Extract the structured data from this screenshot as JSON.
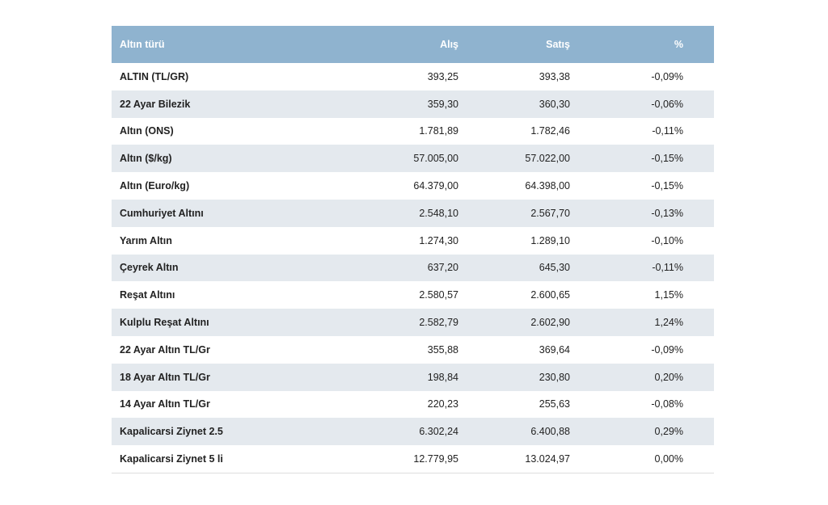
{
  "table": {
    "header": [
      "Altın türü",
      "Alış",
      "Satış",
      "%"
    ],
    "rows": [
      [
        "ALTIN (TL/GR)",
        "393,25",
        "393,38",
        "-0,09%"
      ],
      [
        "22 Ayar Bilezik",
        "359,30",
        "360,30",
        "-0,06%"
      ],
      [
        "Altın (ONS)",
        "1.781,89",
        "1.782,46",
        "-0,11%"
      ],
      [
        "Altın ($/kg)",
        "57.005,00",
        "57.022,00",
        "-0,15%"
      ],
      [
        "Altın (Euro/kg)",
        "64.379,00",
        "64.398,00",
        "-0,15%"
      ],
      [
        "Cumhuriyet Altını",
        "2.548,10",
        "2.567,70",
        "-0,13%"
      ],
      [
        "Yarım Altın",
        "1.274,30",
        "1.289,10",
        "-0,10%"
      ],
      [
        "Çeyrek Altın",
        "637,20",
        "645,30",
        "-0,11%"
      ],
      [
        "Reşat Altını",
        "2.580,57",
        "2.600,65",
        "1,15%"
      ],
      [
        "Kulplu Reşat Altını",
        "2.582,79",
        "2.602,90",
        "1,24%"
      ],
      [
        "22 Ayar Altın TL/Gr",
        "355,88",
        "369,64",
        "-0,09%"
      ],
      [
        "18 Ayar Altın TL/Gr",
        "198,84",
        "230,80",
        "0,20%"
      ],
      [
        "14 Ayar Altın TL/Gr",
        "220,23",
        "255,63",
        "-0,08%"
      ],
      [
        "Kapalicarsi Ziynet 2.5",
        "6.302,24",
        "6.400,88",
        "0,29%"
      ],
      [
        "Kapalicarsi Ziynet 5 li",
        "12.779,95",
        "13.024,97",
        "0,00%"
      ]
    ]
  }
}
